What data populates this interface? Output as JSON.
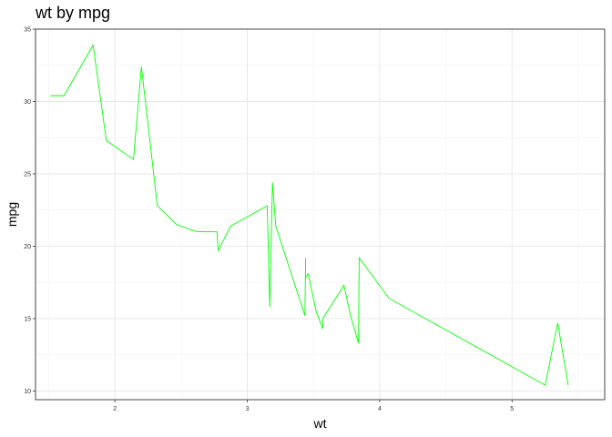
{
  "chart_data": {
    "type": "line",
    "title": "wt by mpg",
    "xlabel": "wt",
    "ylabel": "mpg",
    "xlim": [
      1.4,
      5.7
    ],
    "ylim": [
      9.4,
      35
    ],
    "x_ticks": [
      2,
      3,
      4,
      5
    ],
    "y_ticks": [
      10,
      15,
      20,
      25,
      30,
      35
    ],
    "x_tick_labels": [
      "2",
      "3",
      "4",
      "5"
    ],
    "y_tick_labels": [
      "10",
      "15",
      "20",
      "25",
      "30",
      "35"
    ],
    "grid": true,
    "legend": "none",
    "line_color": "#00ff00",
    "x": [
      1.513,
      1.615,
      1.835,
      1.935,
      2.14,
      2.2,
      2.32,
      2.465,
      2.62,
      2.77,
      2.78,
      2.875,
      3.15,
      3.17,
      3.19,
      3.215,
      3.435,
      3.44,
      3.44,
      3.44,
      3.46,
      3.52,
      3.57,
      3.57,
      3.73,
      3.78,
      3.84,
      3.845,
      4.07,
      5.25,
      5.345,
      5.424
    ],
    "y": [
      30.4,
      30.4,
      33.9,
      27.3,
      26.0,
      32.4,
      22.8,
      21.5,
      21.0,
      21.0,
      19.7,
      21.4,
      22.8,
      15.8,
      24.4,
      21.4,
      15.2,
      18.7,
      19.2,
      17.8,
      18.1,
      15.5,
      14.3,
      15.0,
      17.3,
      15.2,
      13.3,
      19.2,
      16.4,
      10.4,
      14.7,
      10.4
    ]
  }
}
